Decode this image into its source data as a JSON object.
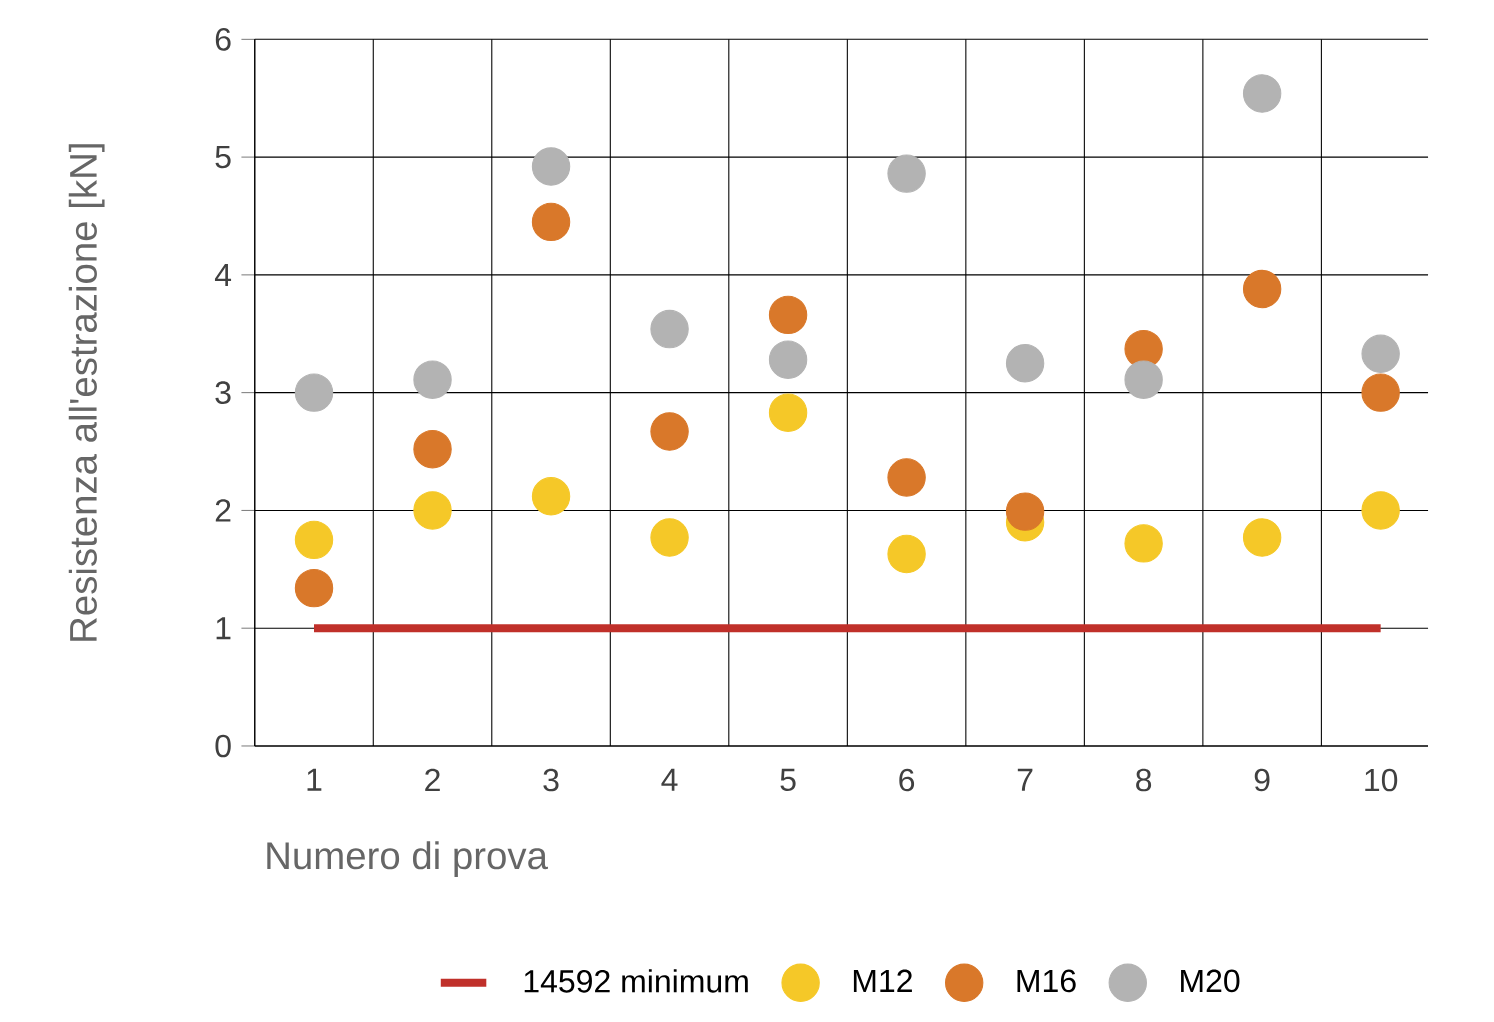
{
  "chart_data": {
    "type": "scatter",
    "xlabel": "Numero di prova",
    "ylabel": "Resistenza all'estrazione [kN]",
    "categories": [
      "1",
      "2",
      "3",
      "4",
      "5",
      "6",
      "7",
      "8",
      "9",
      "10"
    ],
    "ylim": [
      0,
      6
    ],
    "yticks": [
      0,
      1,
      2,
      3,
      4,
      5,
      6
    ],
    "grid": true,
    "legend": "bottom",
    "series": [
      {
        "name": "14592 minimum",
        "type": "line",
        "marker": "none",
        "color": "#c0302a",
        "values": [
          1,
          1,
          1,
          1,
          1,
          1,
          1,
          1,
          1,
          1
        ]
      },
      {
        "name": "M12",
        "marker": "circle",
        "color": "#f5c828",
        "values": [
          1.75,
          2.0,
          2.12,
          1.77,
          2.83,
          1.63,
          1.9,
          1.72,
          1.77,
          2.0
        ]
      },
      {
        "name": "M16",
        "marker": "circle",
        "color": "#d9782a",
        "values": [
          1.34,
          2.52,
          4.45,
          2.67,
          3.66,
          2.28,
          1.99,
          3.37,
          3.88,
          3.0
        ]
      },
      {
        "name": "M20",
        "marker": "circle",
        "color": "#b3b3b3",
        "values": [
          3.0,
          3.11,
          4.92,
          3.54,
          3.28,
          4.86,
          3.25,
          3.11,
          5.54,
          3.33
        ]
      }
    ]
  }
}
